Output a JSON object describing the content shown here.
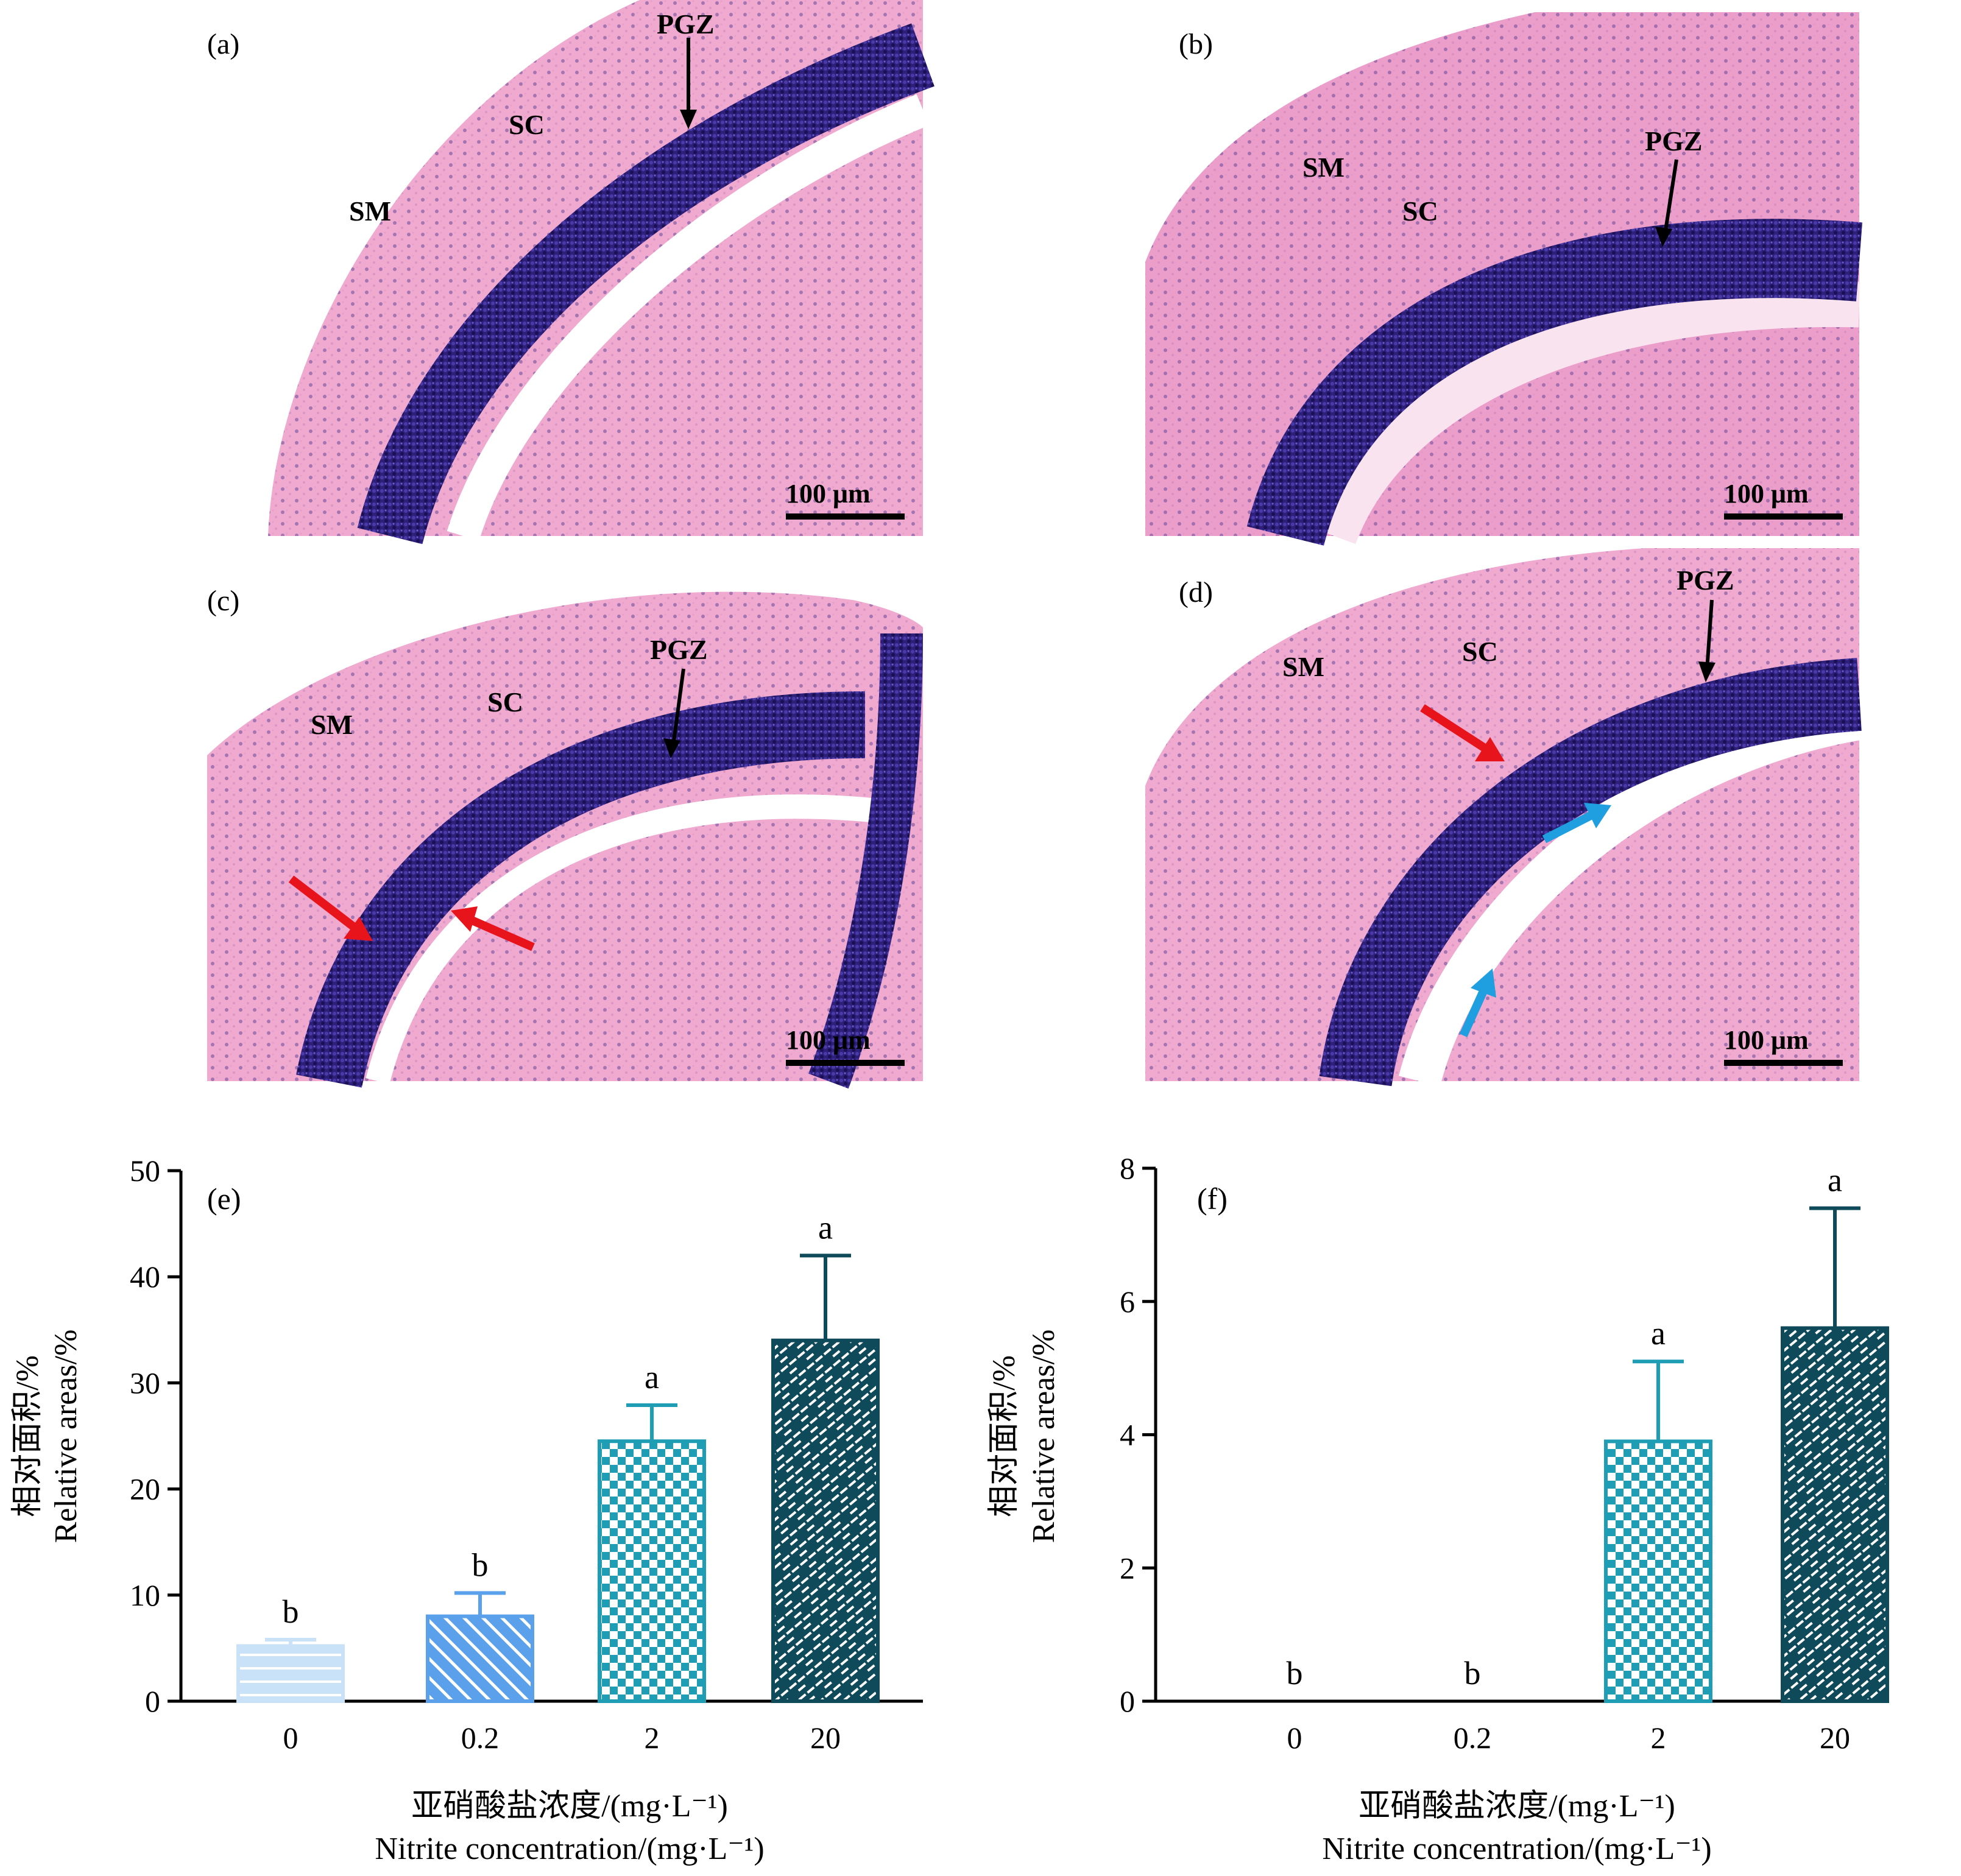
{
  "panels": [
    {
      "letter": "(a)",
      "labels": {
        "pgz": "PGZ",
        "sc": "SC",
        "sm": "SM"
      },
      "scale_bar": "100 μm"
    },
    {
      "letter": "(b)",
      "labels": {
        "pgz": "PGZ",
        "sc": "SC",
        "sm": "SM"
      },
      "scale_bar": "100 μm"
    },
    {
      "letter": "(c)",
      "labels": {
        "pgz": "PGZ",
        "sc": "SC",
        "sm": "SM"
      },
      "scale_bar": "100 μm"
    },
    {
      "letter": "(d)",
      "labels": {
        "pgz": "PGZ",
        "sc": "SC",
        "sm": "SM"
      },
      "scale_bar": "100 μm"
    }
  ],
  "micrograph_colors": {
    "tissue": "#f0a9cf",
    "tissue_light": "#f7cde1",
    "nuclei": "#2d1f7a",
    "lumen": "#ffffff",
    "red_arrow": "#e8141c",
    "blue_arrow": "#1f9fe0"
  },
  "bar_colors": [
    "#c9e2f7",
    "#5aa0ea",
    "#1f9db4",
    "#0f4a5a"
  ],
  "chart_data": [
    {
      "type": "bar",
      "panel_label": "(e)",
      "categories": [
        "0",
        "0.2",
        "2",
        "20"
      ],
      "values": [
        5.2,
        8.0,
        24.5,
        34.0
      ],
      "errors": [
        0.6,
        2.2,
        3.4,
        8.0
      ],
      "significance": [
        "b",
        "b",
        "a",
        "a"
      ],
      "ylim": [
        0,
        50
      ],
      "yticks": [
        "0",
        "10",
        "20",
        "30",
        "40",
        "50"
      ],
      "ylabel_cn": "相对面积/%",
      "ylabel_en": "Relative areas/%",
      "xlabel_cn": "亚硝酸盐浓度/(mg·L⁻¹)",
      "xlabel_en": "Nitrite concentration/(mg·L⁻¹)",
      "patterns": [
        "hlines",
        "diagonal",
        "checker",
        "brick"
      ]
    },
    {
      "type": "bar",
      "panel_label": "(f)",
      "categories": [
        "0",
        "0.2",
        "2",
        "20"
      ],
      "values": [
        0,
        0,
        3.9,
        5.6
      ],
      "errors": [
        0,
        0,
        1.2,
        1.8
      ],
      "significance": [
        "b",
        "b",
        "a",
        "a"
      ],
      "ylim": [
        0,
        8
      ],
      "yticks": [
        "0",
        "2",
        "4",
        "6",
        "8"
      ],
      "ylabel_cn": "相对面积/%",
      "ylabel_en": "Relative areas/%",
      "xlabel_cn": "亚硝酸盐浓度/(mg·L⁻¹)",
      "xlabel_en": "Nitrite concentration/(mg·L⁻¹)",
      "patterns": [
        "hlines",
        "diagonal",
        "checker",
        "brick"
      ]
    }
  ]
}
